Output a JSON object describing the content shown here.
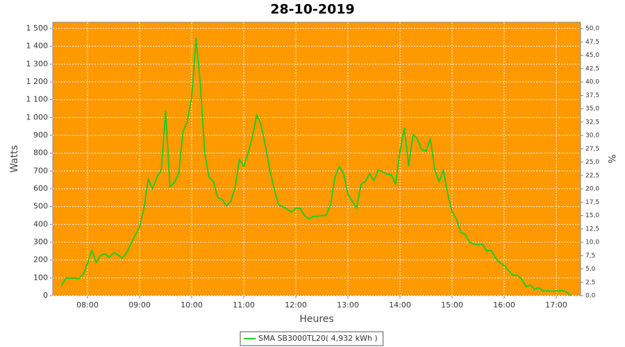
{
  "chart_data": {
    "type": "line",
    "title": "28-10-2019",
    "x_label": "Heures",
    "y_label": "Watts",
    "y2_label": "%",
    "background": "#ff9900",
    "grid": true,
    "legend": "bottom",
    "x": [
      "07:30",
      "07:35",
      "07:40",
      "07:45",
      "07:50",
      "07:55",
      "08:00",
      "08:05",
      "08:10",
      "08:15",
      "08:20",
      "08:25",
      "08:30",
      "08:35",
      "08:40",
      "08:45",
      "08:50",
      "08:55",
      "09:00",
      "09:05",
      "09:10",
      "09:15",
      "09:20",
      "09:25",
      "09:30",
      "09:35",
      "09:40",
      "09:45",
      "09:50",
      "09:55",
      "10:00",
      "10:05",
      "10:10",
      "10:15",
      "10:20",
      "10:25",
      "10:30",
      "10:35",
      "10:40",
      "10:45",
      "10:50",
      "10:55",
      "11:00",
      "11:05",
      "11:10",
      "11:15",
      "11:20",
      "11:25",
      "11:30",
      "11:35",
      "11:40",
      "11:45",
      "11:50",
      "11:55",
      "12:00",
      "12:05",
      "12:10",
      "12:15",
      "12:20",
      "12:25",
      "12:30",
      "12:35",
      "12:40",
      "12:45",
      "12:50",
      "12:55",
      "13:00",
      "13:05",
      "13:10",
      "13:15",
      "13:20",
      "13:25",
      "13:30",
      "13:35",
      "13:40",
      "13:45",
      "13:50",
      "13:55",
      "14:00",
      "14:05",
      "14:10",
      "14:15",
      "14:20",
      "14:25",
      "14:30",
      "14:35",
      "14:40",
      "14:45",
      "14:50",
      "14:55",
      "15:00",
      "15:05",
      "15:10",
      "15:15",
      "15:20",
      "15:25",
      "15:30",
      "15:35",
      "15:40",
      "15:45",
      "15:50",
      "15:55",
      "16:00",
      "16:05",
      "16:10",
      "16:15",
      "16:20",
      "16:25",
      "16:30",
      "16:35",
      "16:40",
      "16:45",
      "16:50",
      "16:55",
      "17:00",
      "17:05",
      "17:10",
      "17:17"
    ],
    "series": [
      {
        "name": "SMA SB3000TL20( 4,932 kWh )",
        "color": "#22cc22",
        "values": [
          55,
          100,
          97,
          100,
          95,
          120,
          180,
          255,
          185,
          225,
          235,
          215,
          240,
          230,
          210,
          240,
          290,
          340,
          385,
          490,
          655,
          600,
          665,
          705,
          1035,
          610,
          635,
          685,
          920,
          980,
          1115,
          1445,
          1190,
          800,
          665,
          640,
          550,
          540,
          505,
          530,
          605,
          765,
          725,
          800,
          890,
          1015,
          960,
          840,
          705,
          600,
          510,
          500,
          485,
          470,
          490,
          490,
          450,
          430,
          445,
          445,
          450,
          450,
          510,
          665,
          725,
          685,
          570,
          530,
          490,
          625,
          640,
          685,
          645,
          705,
          695,
          680,
          680,
          625,
          810,
          940,
          730,
          905,
          880,
          820,
          810,
          880,
          705,
          640,
          705,
          570,
          470,
          430,
          355,
          345,
          300,
          290,
          285,
          290,
          250,
          255,
          210,
          185,
          170,
          140,
          115,
          115,
          95,
          50,
          60,
          35,
          45,
          25,
          28,
          25,
          25,
          28,
          25,
          0
        ]
      }
    ],
    "xlim": [
      "07:20",
      "17:28"
    ],
    "xticks": [
      "08:00",
      "09:00",
      "10:00",
      "11:00",
      "12:00",
      "13:00",
      "14:00",
      "15:00",
      "16:00",
      "17:00"
    ],
    "ylim": [
      0,
      1535
    ],
    "yticks": [
      0,
      100,
      200,
      300,
      400,
      500,
      600,
      700,
      800,
      900,
      {
        "value": 1000,
        "label": "1 000"
      },
      {
        "value": 1100,
        "label": "1 100"
      },
      {
        "value": 1200,
        "label": "1 200"
      },
      {
        "value": 1300,
        "label": "1 300"
      },
      {
        "value": 1400,
        "label": "1 400"
      },
      {
        "value": 1500,
        "label": "1 500"
      }
    ],
    "y2lim": [
      0,
      51.2
    ],
    "y2ticks": [
      {
        "value": 0,
        "label": "0,0"
      },
      {
        "value": 2.5,
        "label": "2,5"
      },
      {
        "value": 5,
        "label": "5,0"
      },
      {
        "value": 7.5,
        "label": "7,5"
      },
      {
        "value": 10,
        "label": "10,0"
      },
      {
        "value": 12.5,
        "label": "12,5"
      },
      {
        "value": 15,
        "label": "15,0"
      },
      {
        "value": 17.5,
        "label": "17,5"
      },
      {
        "value": 20,
        "label": "20,0"
      },
      {
        "value": 22.5,
        "label": "22,5"
      },
      {
        "value": 25,
        "label": "25,0"
      },
      {
        "value": 27.5,
        "label": "27,5"
      },
      {
        "value": 30,
        "label": "30,0"
      },
      {
        "value": 32.5,
        "label": "32,5"
      },
      {
        "value": 35,
        "label": "35,0"
      },
      {
        "value": 37.5,
        "label": "37,5"
      },
      {
        "value": 40,
        "label": "40,0"
      },
      {
        "value": 42.5,
        "label": "42,5"
      },
      {
        "value": 45,
        "label": "45,0"
      },
      {
        "value": 47.5,
        "label": "47,5"
      },
      {
        "value": 50,
        "label": "50,0"
      }
    ]
  }
}
